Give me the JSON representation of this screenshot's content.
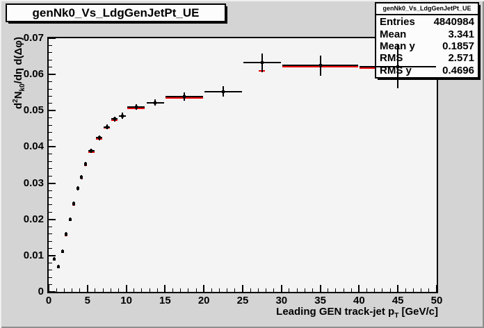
{
  "title": "genNk0_Vs_LdgGenJetPt_UE",
  "stats": {
    "title": "genNk0_Vs_LdgGenJetPt_UE",
    "rows": [
      {
        "label": "Entries",
        "value": "4840984"
      },
      {
        "label": "Mean",
        "value": "3.341"
      },
      {
        "label": "Mean y",
        "value": "0.1857"
      },
      {
        "label": "RMS",
        "value": "2.571"
      },
      {
        "label": "RMS y",
        "value": "0.4696"
      }
    ]
  },
  "axis_titles": {
    "x_main": "Leading GEN track-jet p",
    "x_sub": "T",
    "x_tail": " [GeV/c]",
    "y_d": "d",
    "y_sup": "2",
    "y_n": "N",
    "y_sub": "k0",
    "y_tail": "/dη d(Δφ)"
  },
  "colors": {
    "marker": "#000000",
    "overlay_line": "#ee0000",
    "canvas_bg": "#d4d4d4",
    "plot_bg": "#f4f4f4",
    "box_bg": "#fcfcfc"
  },
  "chart_data": {
    "type": "scatter",
    "subtype": "root-tprofile-with-errorbars",
    "title": "genNk0_Vs_LdgGenJetPt_UE",
    "xlabel": "Leading GEN track-jet pT [GeV/c]",
    "ylabel": "d²N_k0/dη d(Δφ)",
    "xlim": [
      0,
      50
    ],
    "ylim": [
      0,
      0.07
    ],
    "grid": false,
    "legend": false,
    "x_major_ticks": [
      {
        "v": 0,
        "label": "0"
      },
      {
        "v": 5,
        "label": "5"
      },
      {
        "v": 10,
        "label": "10"
      },
      {
        "v": 15,
        "label": "15"
      },
      {
        "v": 20,
        "label": "20"
      },
      {
        "v": 25,
        "label": "25"
      },
      {
        "v": 30,
        "label": "30"
      },
      {
        "v": 35,
        "label": "35"
      },
      {
        "v": 40,
        "label": "40"
      },
      {
        "v": 45,
        "label": "45"
      },
      {
        "v": 50,
        "label": "50"
      }
    ],
    "x_minor_step": 1,
    "y_major_ticks": [
      {
        "v": 0,
        "label": "0"
      },
      {
        "v": 0.01,
        "label": "0.01"
      },
      {
        "v": 0.02,
        "label": "0.02"
      },
      {
        "v": 0.03,
        "label": "0.03"
      },
      {
        "v": 0.04,
        "label": "0.04"
      },
      {
        "v": 0.05,
        "label": "0.05"
      },
      {
        "v": 0.06,
        "label": "0.06"
      },
      {
        "v": 0.07,
        "label": "0.07"
      }
    ],
    "y_minor_step": 0.002,
    "series": [
      {
        "name": "black-profile-markers",
        "color": "#000000"
      },
      {
        "name": "red-overlay-hist",
        "color": "#ee0000"
      }
    ],
    "points": [
      {
        "x_low": 0.5,
        "x_high": 1.0,
        "y": 0.0091,
        "err": 0.0005,
        "red_y": null,
        "red_short": false
      },
      {
        "x_low": 1.0,
        "x_high": 1.5,
        "y": 0.007,
        "err": 0.0005,
        "red_y": 0.0069,
        "red_short": false
      },
      {
        "x_low": 1.5,
        "x_high": 2.0,
        "y": 0.0112,
        "err": 0.0005,
        "red_y": 0.011,
        "red_short": false
      },
      {
        "x_low": 2.0,
        "x_high": 2.5,
        "y": 0.0159,
        "err": 0.0005,
        "red_y": 0.0156,
        "red_short": false
      },
      {
        "x_low": 2.5,
        "x_high": 3.0,
        "y": 0.02,
        "err": 0.0005,
        "red_y": 0.0197,
        "red_short": false
      },
      {
        "x_low": 3.0,
        "x_high": 3.5,
        "y": 0.0243,
        "err": 0.0006,
        "red_y": 0.024,
        "red_short": false
      },
      {
        "x_low": 3.5,
        "x_high": 4.0,
        "y": 0.0286,
        "err": 0.0006,
        "red_y": 0.0283,
        "red_short": false
      },
      {
        "x_low": 4.0,
        "x_high": 4.5,
        "y": 0.0316,
        "err": 0.0006,
        "red_y": 0.0313,
        "red_short": false
      },
      {
        "x_low": 4.5,
        "x_high": 5.0,
        "y": 0.0353,
        "err": 0.0006,
        "red_y": 0.035,
        "red_short": false
      },
      {
        "x_low": 5.0,
        "x_high": 6.0,
        "y": 0.0389,
        "err": 0.0006,
        "red_y": 0.0386,
        "red_short": false
      },
      {
        "x_low": 6.0,
        "x_high": 7.0,
        "y": 0.0425,
        "err": 0.0006,
        "red_y": 0.0422,
        "red_short": false
      },
      {
        "x_low": 7.0,
        "x_high": 8.0,
        "y": 0.0455,
        "err": 0.0007,
        "red_y": 0.0452,
        "red_short": false
      },
      {
        "x_low": 8.0,
        "x_high": 9.0,
        "y": 0.0477,
        "err": 0.0007,
        "red_y": 0.0474,
        "red_short": false
      },
      {
        "x_low": 9.0,
        "x_high": 10.0,
        "y": 0.0486,
        "err": 0.0008,
        "red_y": null,
        "red_short": false
      },
      {
        "x_low": 10.0,
        "x_high": 12.5,
        "y": 0.051,
        "err": 0.0008,
        "red_y": 0.0507,
        "red_short": false
      },
      {
        "x_low": 12.5,
        "x_high": 15.0,
        "y": 0.0522,
        "err": 0.0009,
        "red_y": null,
        "red_short": false
      },
      {
        "x_low": 15.0,
        "x_high": 20.0,
        "y": 0.0539,
        "err": 0.0011,
        "red_y": 0.0536,
        "red_short": false
      },
      {
        "x_low": 20.0,
        "x_high": 25.0,
        "y": 0.0553,
        "err": 0.0015,
        "red_y": null,
        "red_short": false
      },
      {
        "x_low": 25.0,
        "x_high": 30.0,
        "y": 0.0632,
        "err": 0.0026,
        "red_y": 0.061,
        "red_short": true
      },
      {
        "x_low": 30.0,
        "x_high": 40.0,
        "y": 0.0625,
        "err": 0.0028,
        "red_y": 0.0621,
        "red_short": false
      },
      {
        "x_low": 40.0,
        "x_high": 50.0,
        "y": 0.0622,
        "err": 0.006,
        "red_y": 0.0618,
        "red_short": false
      }
    ]
  }
}
